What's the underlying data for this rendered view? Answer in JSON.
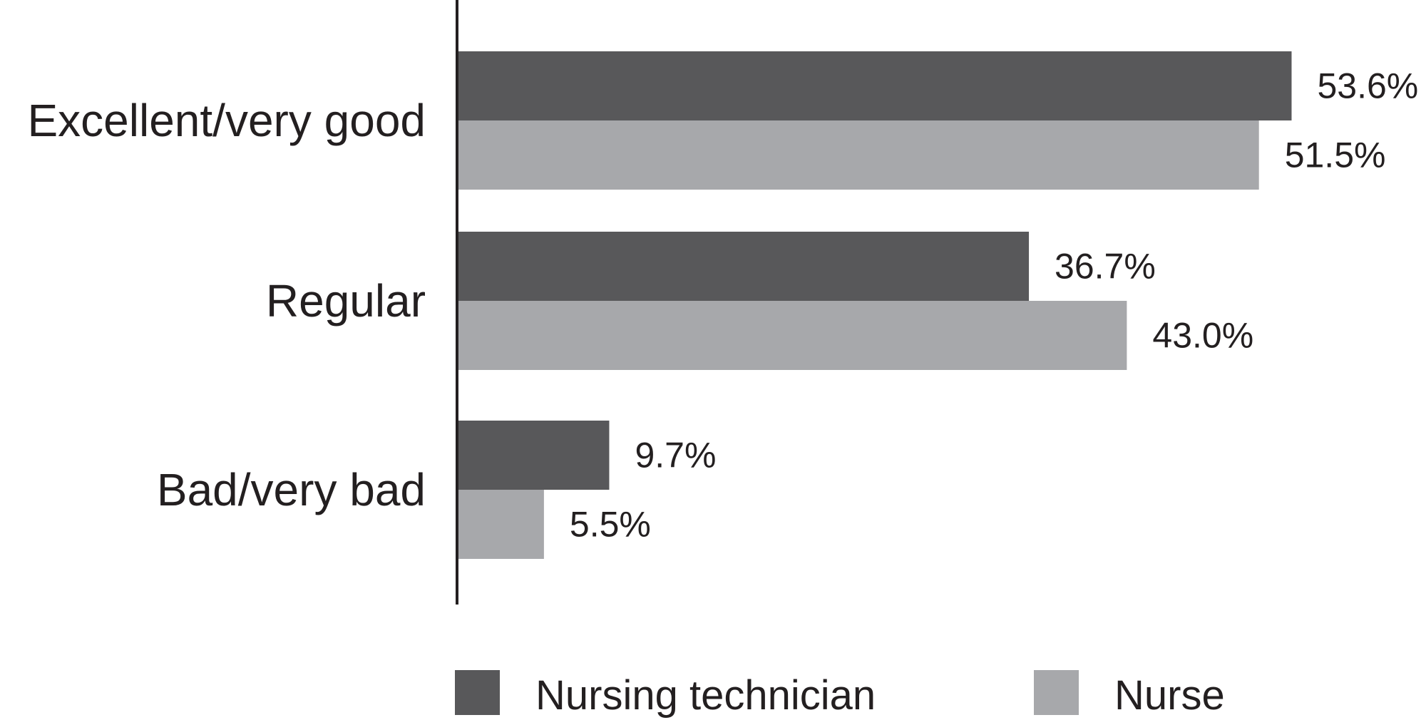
{
  "chart_data": {
    "type": "bar",
    "orientation": "horizontal",
    "title": "",
    "xlabel": "",
    "ylabel": "",
    "xlim": [
      0,
      60
    ],
    "grid": false,
    "legend_position": "bottom",
    "value_suffix": "%",
    "categories": [
      "Excellent/very good",
      "Regular",
      "Bad/very bad"
    ],
    "series": [
      {
        "name": "Nursing technician",
        "values": [
          53.6,
          36.7,
          9.7
        ],
        "labels": [
          "53.6%",
          "36.7%",
          "9.7%"
        ],
        "color": "#58585a"
      },
      {
        "name": "Nurse",
        "values": [
          51.5,
          43.0,
          5.5
        ],
        "labels": [
          "51.5%",
          "43.0%",
          "5.5%"
        ],
        "color": "#a7a8ab"
      }
    ]
  },
  "colors": {
    "axis": "#231f20",
    "text": "#231f20"
  }
}
